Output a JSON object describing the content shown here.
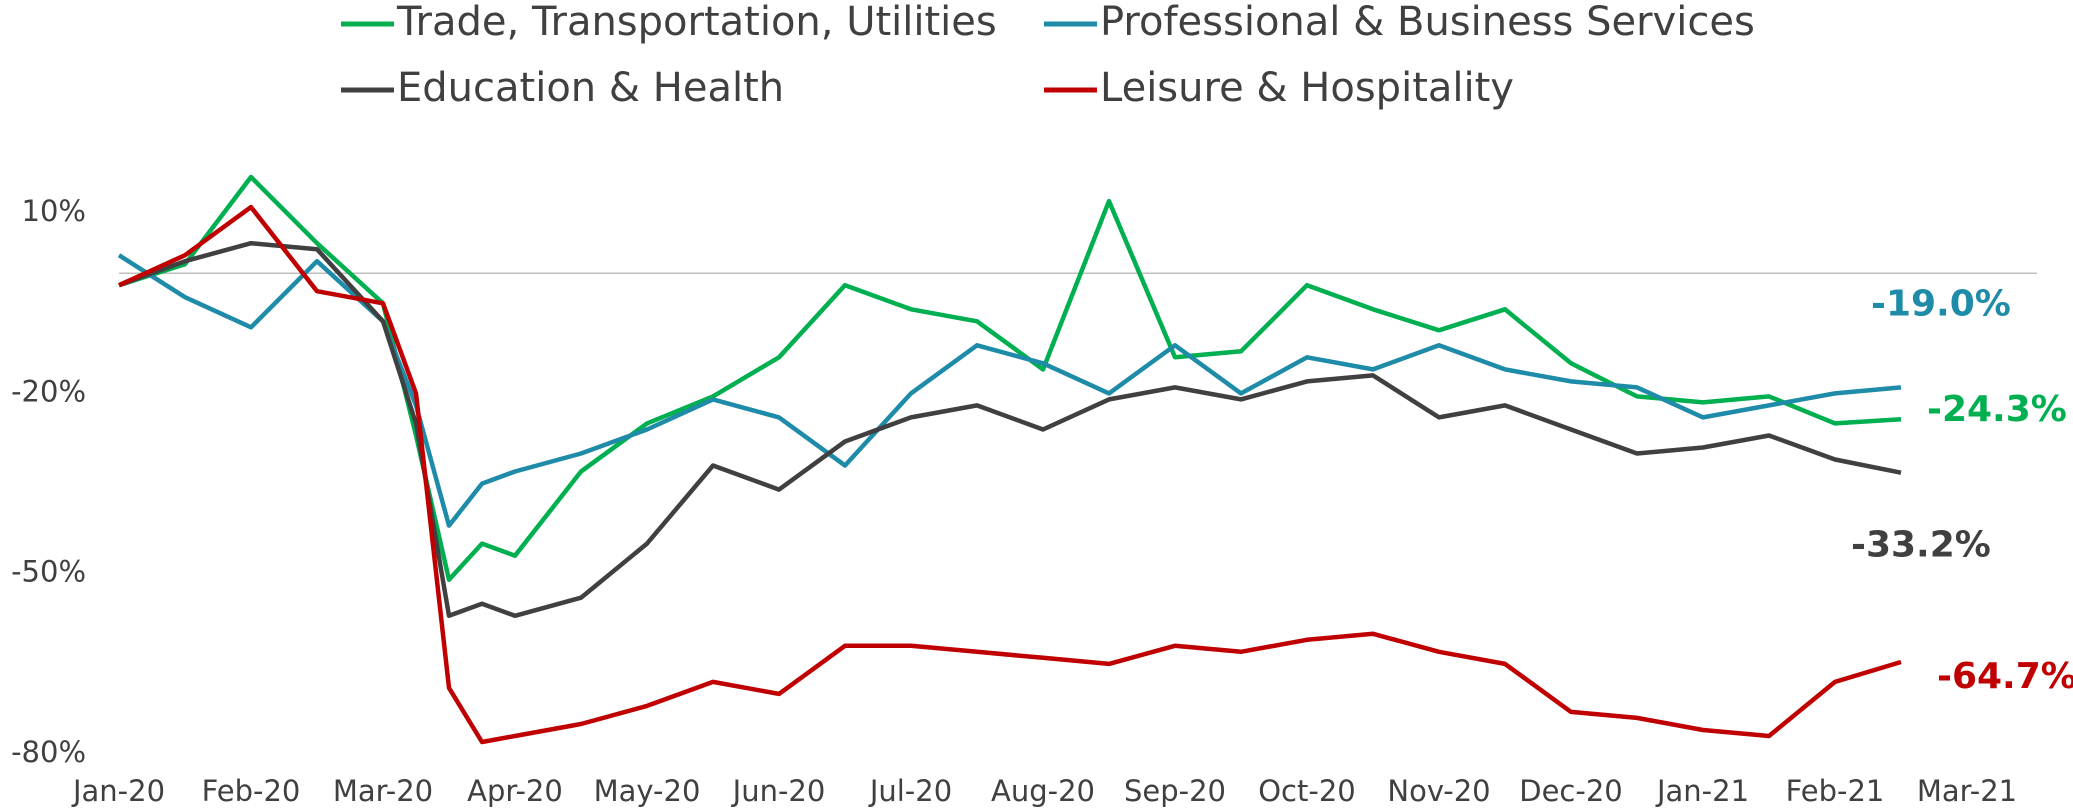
{
  "chart_data": {
    "type": "line",
    "x": [
      0,
      0.5,
      1,
      1.5,
      2,
      2.25,
      2.5,
      2.75,
      3,
      3.5,
      4,
      4.5,
      5,
      5.5,
      6,
      6.5,
      7,
      7.5,
      8,
      8.5,
      9,
      9.5,
      10,
      10.5,
      11,
      11.5,
      12,
      12.5,
      13,
      13.5
    ],
    "series": [
      {
        "name": "Trade, Transportation, Utilities",
        "color": "#00b050",
        "values": [
          -2,
          1.5,
          16,
          5,
          -5,
          -27,
          -51,
          -45,
          -47,
          -33,
          -25,
          -20.5,
          -14,
          -2,
          -6,
          -8,
          -16,
          12,
          -14,
          -13,
          -2,
          -6,
          -9.5,
          -6,
          -15,
          -20.5,
          -21.5,
          -20.5,
          -25,
          -24.3
        ],
        "value_labels": [
          null,
          null,
          null,
          null,
          null,
          null,
          null,
          null,
          null,
          null,
          null,
          null,
          null,
          null,
          null,
          null,
          null,
          null,
          null,
          null,
          null,
          null,
          null,
          null,
          null,
          null,
          null,
          null,
          null,
          "-24.3%"
        ]
      },
      {
        "name": "Professional & Business Services",
        "color": "#1e8ca8",
        "values": [
          3,
          -4,
          -9,
          2,
          -8,
          -22,
          -42,
          -35,
          -33,
          -30,
          -26,
          -21,
          -24,
          -32,
          -20,
          -12,
          -15,
          -20,
          -12,
          -20,
          -14,
          -16,
          -12,
          -16,
          -18,
          -19,
          -24,
          -22,
          -20,
          -19.0
        ],
        "value_labels": [
          null,
          null,
          null,
          null,
          null,
          null,
          null,
          null,
          null,
          null,
          null,
          null,
          null,
          null,
          null,
          null,
          null,
          null,
          null,
          null,
          null,
          null,
          null,
          null,
          null,
          null,
          null,
          null,
          null,
          "-19.0%"
        ]
      },
      {
        "name": "Education & Health",
        "color": "#404040",
        "values": [
          -2,
          2,
          5,
          4,
          -8,
          -25,
          -57,
          -55,
          -57,
          -54,
          -45,
          -32,
          -36,
          -28,
          -24,
          -22,
          -26,
          -21,
          -19,
          -21,
          -18,
          -17,
          -24,
          -22,
          -26,
          -30,
          -29,
          -27,
          -31,
          -33.2
        ],
        "value_labels": [
          null,
          null,
          null,
          null,
          null,
          null,
          null,
          null,
          null,
          null,
          null,
          null,
          null,
          null,
          null,
          null,
          null,
          null,
          null,
          null,
          null,
          null,
          null,
          null,
          null,
          null,
          null,
          null,
          null,
          "-33.2%"
        ]
      },
      {
        "name": "Leisure & Hospitality",
        "color": "#c00000",
        "values": [
          -2,
          3,
          11,
          -3,
          -5,
          -20,
          -69,
          -78,
          -77,
          -75,
          -72,
          -68,
          -70,
          -62,
          -62,
          -63,
          -64,
          -65,
          -62,
          -63,
          -61,
          -60,
          -63,
          -65,
          -73,
          -74,
          -76,
          -77,
          -68,
          -64.7
        ],
        "value_labels": [
          null,
          null,
          null,
          null,
          null,
          null,
          null,
          null,
          null,
          null,
          null,
          null,
          null,
          null,
          null,
          null,
          null,
          null,
          null,
          null,
          null,
          null,
          null,
          null,
          null,
          null,
          null,
          null,
          null,
          "-64.7%"
        ]
      }
    ],
    "xlim": [
      0,
      14
    ],
    "xticks": [
      {
        "value": 0,
        "label": "Jan-20"
      },
      {
        "value": 1,
        "label": "Feb-20"
      },
      {
        "value": 2,
        "label": "Mar-20"
      },
      {
        "value": 3,
        "label": "Apr-20"
      },
      {
        "value": 4,
        "label": "May-20"
      },
      {
        "value": 5,
        "label": "Jun-20"
      },
      {
        "value": 6,
        "label": "Jul-20"
      },
      {
        "value": 7,
        "label": "Aug-20"
      },
      {
        "value": 8,
        "label": "Sep-20"
      },
      {
        "value": 9,
        "label": "Oct-20"
      },
      {
        "value": 10,
        "label": "Nov-20"
      },
      {
        "value": 11,
        "label": "Dec-20"
      },
      {
        "value": 12,
        "label": "Jan-21"
      },
      {
        "value": 13,
        "label": "Feb-21"
      },
      {
        "value": 14,
        "label": "Mar-21"
      }
    ],
    "ylim": [
      -80,
      20
    ],
    "yticks": [
      {
        "value": 10,
        "label": "10%"
      },
      {
        "value": -20,
        "label": "-20%"
      },
      {
        "value": -50,
        "label": "-50%"
      },
      {
        "value": -80,
        "label": "-80%"
      }
    ],
    "zero_line": true,
    "legend": "top"
  }
}
